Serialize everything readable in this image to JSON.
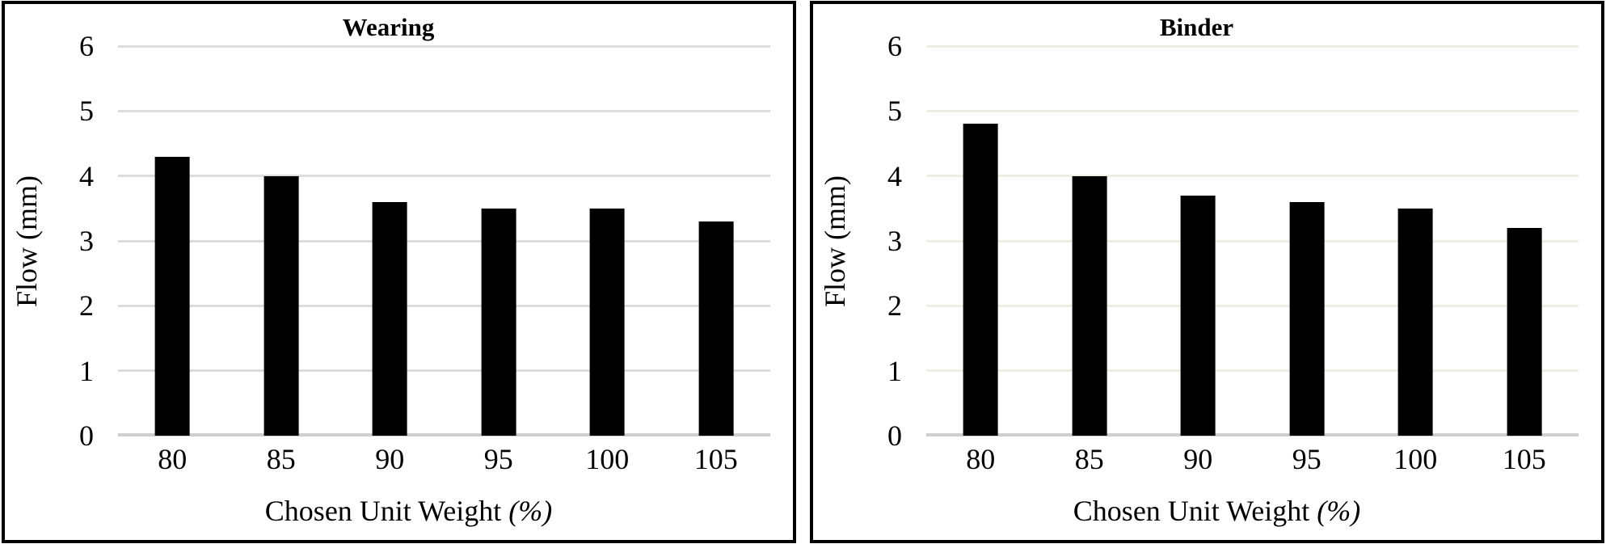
{
  "figure": {
    "background": "#ffffff",
    "panel_border_color": "#000000"
  },
  "chart_data": [
    {
      "type": "bar",
      "title": "Wearing",
      "categories": [
        "80",
        "85",
        "90",
        "95",
        "100",
        "105"
      ],
      "values": [
        4.3,
        4.0,
        3.6,
        3.5,
        3.5,
        3.3
      ],
      "xlabel_text": "Chosen Unit Weight",
      "xlabel_unit": "(%)",
      "ylabel": "Flow (mm)",
      "ylim": [
        0,
        6
      ],
      "yticks": [
        0,
        1,
        2,
        3,
        4,
        5,
        6
      ],
      "grid": true,
      "legend": "none",
      "bar_color": "#000000",
      "gridline_color": "#dcdcdc",
      "baseline_color": "#cfcfcf"
    },
    {
      "type": "bar",
      "title": "Binder",
      "categories": [
        "80",
        "85",
        "90",
        "95",
        "100",
        "105"
      ],
      "values": [
        4.8,
        4.0,
        3.7,
        3.6,
        3.5,
        3.2
      ],
      "xlabel_text": "Chosen Unit Weight",
      "xlabel_unit": "(%)",
      "ylabel": "Flow (mm)",
      "ylim": [
        0,
        6
      ],
      "yticks": [
        0,
        1,
        2,
        3,
        4,
        5,
        6
      ],
      "grid": true,
      "legend": "none",
      "bar_color": "#000000",
      "gridline_color": "#efeee2",
      "baseline_color": "#cfcfcf"
    }
  ]
}
